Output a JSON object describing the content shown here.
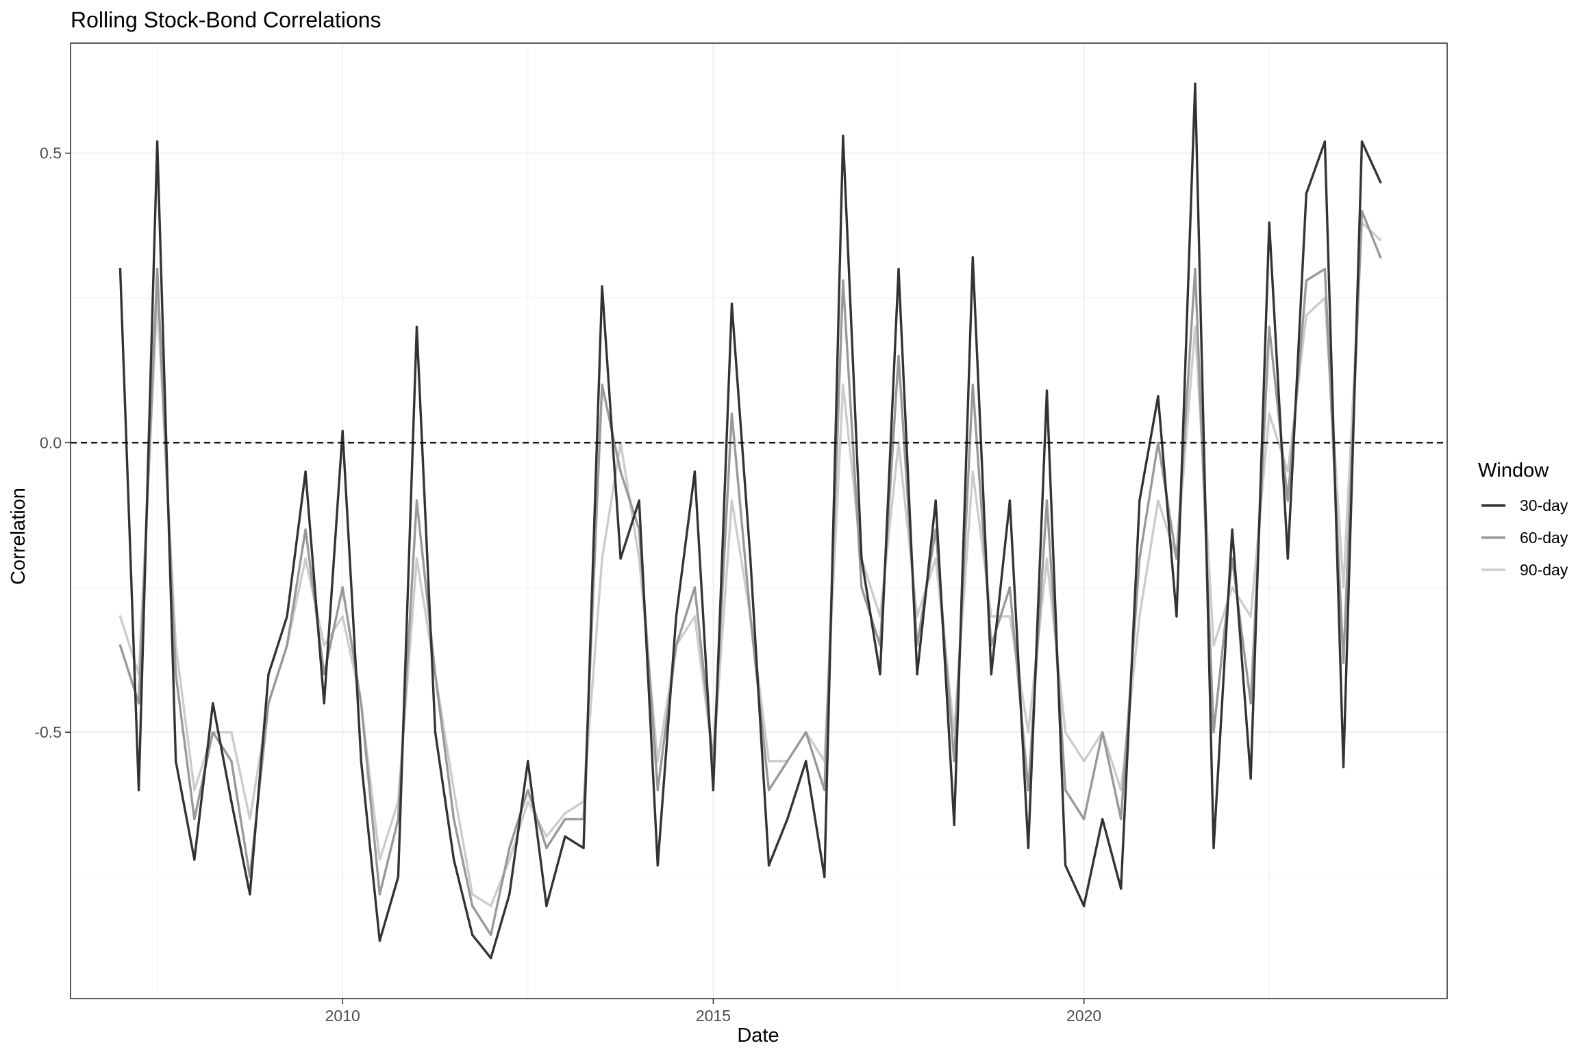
{
  "chart_data": {
    "type": "line",
    "title": "Rolling Stock-Bond Correlations",
    "xlabel": "Date",
    "ylabel": "Correlation",
    "xlim": [
      2006.33,
      2024.9
    ],
    "ylim": [
      -0.96,
      0.69
    ],
    "x_ticks": [
      2010,
      2015,
      2020
    ],
    "x_tick_labels": [
      "2010",
      "2015",
      "2020"
    ],
    "y_ticks": [
      -0.5,
      0.0,
      0.5
    ],
    "y_tick_labels": [
      "-0.5",
      "0.0",
      "0.5"
    ],
    "grid": true,
    "reference_line": {
      "y": 0.0,
      "style": "dashed",
      "color": "#000000"
    },
    "legend": {
      "title": "Window",
      "position": "right",
      "entries": [
        {
          "label": "30-day",
          "color": "#333333"
        },
        {
          "label": "60-day",
          "color": "#999999"
        },
        {
          "label": "90-day",
          "color": "#cccccc"
        }
      ]
    },
    "x": [
      2007.0,
      2007.25,
      2007.5,
      2007.75,
      2008.0,
      2008.25,
      2008.5,
      2008.75,
      2009.0,
      2009.25,
      2009.5,
      2009.75,
      2010.0,
      2010.25,
      2010.5,
      2010.75,
      2011.0,
      2011.25,
      2011.5,
      2011.75,
      2012.0,
      2012.25,
      2012.5,
      2012.75,
      2013.0,
      2013.25,
      2013.5,
      2013.75,
      2014.0,
      2014.25,
      2014.5,
      2014.75,
      2015.0,
      2015.25,
      2015.5,
      2015.75,
      2016.0,
      2016.25,
      2016.5,
      2016.75,
      2017.0,
      2017.25,
      2017.5,
      2017.75,
      2018.0,
      2018.25,
      2018.5,
      2018.75,
      2019.0,
      2019.25,
      2019.5,
      2019.75,
      2020.0,
      2020.25,
      2020.5,
      2020.75,
      2021.0,
      2021.25,
      2021.5,
      2021.75,
      2022.0,
      2022.25,
      2022.5,
      2022.75,
      2023.0,
      2023.25,
      2023.5,
      2023.75,
      2024.0
    ],
    "series": [
      {
        "name": "30-day",
        "color": "#333333",
        "values": [
          0.3,
          -0.6,
          0.52,
          -0.55,
          -0.72,
          -0.45,
          -0.62,
          -0.78,
          -0.4,
          -0.3,
          -0.05,
          -0.45,
          0.02,
          -0.55,
          -0.86,
          -0.75,
          0.2,
          -0.5,
          -0.72,
          -0.85,
          -0.89,
          -0.78,
          -0.55,
          -0.8,
          -0.68,
          -0.7,
          0.27,
          -0.2,
          -0.1,
          -0.73,
          -0.3,
          -0.05,
          -0.6,
          0.24,
          -0.2,
          -0.73,
          -0.65,
          -0.55,
          -0.75,
          0.53,
          -0.2,
          -0.4,
          0.3,
          -0.4,
          -0.1,
          -0.66,
          0.32,
          -0.4,
          -0.1,
          -0.7,
          0.09,
          -0.73,
          -0.8,
          -0.65,
          -0.77,
          -0.1,
          0.08,
          -0.3,
          0.62,
          -0.7,
          -0.15,
          -0.58,
          0.38,
          -0.2,
          0.43,
          0.52,
          -0.56,
          0.52,
          0.45
        ]
      },
      {
        "name": "60-day",
        "color": "#999999",
        "values": [
          -0.35,
          -0.45,
          0.3,
          -0.4,
          -0.65,
          -0.5,
          -0.55,
          -0.75,
          -0.45,
          -0.35,
          -0.15,
          -0.4,
          -0.25,
          -0.45,
          -0.78,
          -0.65,
          -0.1,
          -0.4,
          -0.65,
          -0.8,
          -0.85,
          -0.7,
          -0.6,
          -0.7,
          -0.65,
          -0.65,
          0.1,
          -0.05,
          -0.15,
          -0.6,
          -0.35,
          -0.25,
          -0.55,
          0.05,
          -0.3,
          -0.6,
          -0.55,
          -0.5,
          -0.6,
          0.28,
          -0.25,
          -0.35,
          0.15,
          -0.35,
          -0.15,
          -0.55,
          0.1,
          -0.35,
          -0.25,
          -0.6,
          -0.1,
          -0.6,
          -0.65,
          -0.5,
          -0.65,
          -0.2,
          0.0,
          -0.2,
          0.3,
          -0.5,
          -0.2,
          -0.45,
          0.2,
          -0.1,
          0.28,
          0.3,
          -0.38,
          0.4,
          0.32
        ]
      },
      {
        "name": "90-day",
        "color": "#cccccc",
        "values": [
          -0.3,
          -0.4,
          0.25,
          -0.35,
          -0.6,
          -0.5,
          -0.5,
          -0.65,
          -0.45,
          -0.35,
          -0.2,
          -0.35,
          -0.3,
          -0.45,
          -0.72,
          -0.62,
          -0.2,
          -0.4,
          -0.6,
          -0.78,
          -0.8,
          -0.72,
          -0.62,
          -0.68,
          -0.64,
          -0.62,
          -0.2,
          0.0,
          -0.2,
          -0.55,
          -0.35,
          -0.3,
          -0.55,
          -0.1,
          -0.3,
          -0.55,
          -0.55,
          -0.5,
          -0.55,
          0.1,
          -0.2,
          -0.3,
          0.0,
          -0.3,
          -0.2,
          -0.5,
          -0.05,
          -0.3,
          -0.3,
          -0.5,
          -0.2,
          -0.5,
          -0.55,
          -0.5,
          -0.6,
          -0.3,
          -0.1,
          -0.2,
          0.2,
          -0.35,
          -0.25,
          -0.3,
          0.05,
          -0.05,
          0.22,
          0.25,
          -0.25,
          0.38,
          0.35
        ]
      }
    ]
  }
}
